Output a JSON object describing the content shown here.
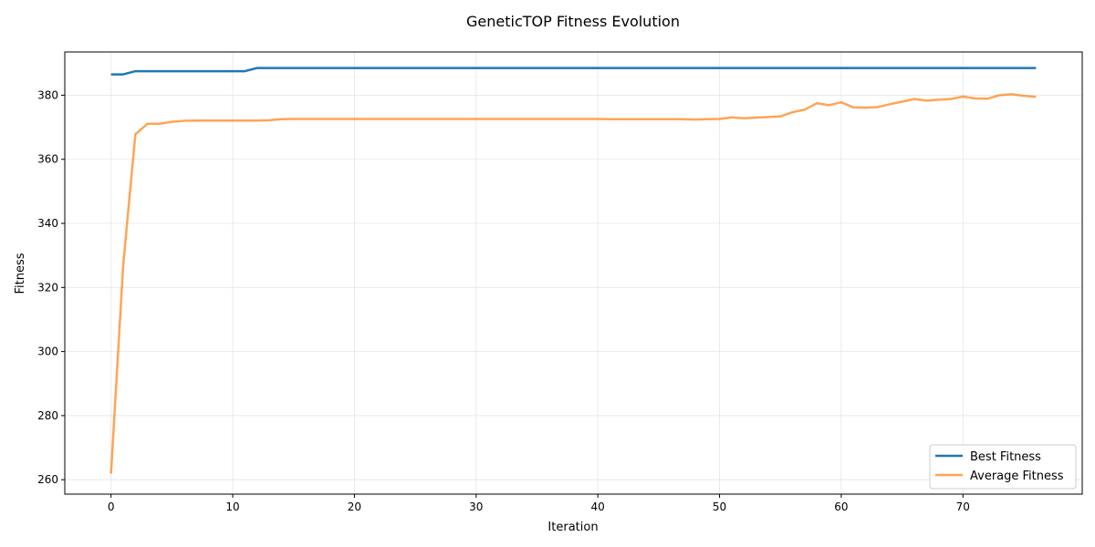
{
  "chart_data": {
    "type": "line",
    "title": "GeneticTOP Fitness Evolution",
    "xlabel": "Iteration",
    "ylabel": "Fitness",
    "xlim": [
      -3.8,
      79.8
    ],
    "ylim": [
      255.5,
      393.5
    ],
    "xticks": [
      0,
      10,
      20,
      30,
      40,
      50,
      60,
      70
    ],
    "yticks": [
      260,
      280,
      300,
      320,
      340,
      360,
      380
    ],
    "grid": true,
    "legend": "bottom-right",
    "series": [
      {
        "name": "Best Fitness",
        "color": "#1f77b4",
        "x": [
          0,
          1,
          2,
          11,
          12,
          76
        ],
        "y": [
          386.5,
          386.5,
          387.5,
          387.5,
          388.5,
          388.5
        ]
      },
      {
        "name": "Average Fitness",
        "color": "#ff7f0e",
        "x": [
          0,
          1,
          2,
          3,
          4,
          5,
          6,
          7,
          8,
          9,
          10,
          11,
          12,
          13,
          14,
          15,
          16,
          17,
          18,
          19,
          20,
          21,
          22,
          23,
          24,
          25,
          26,
          27,
          28,
          29,
          30,
          31,
          32,
          33,
          34,
          35,
          36,
          37,
          38,
          39,
          40,
          41,
          42,
          43,
          44,
          45,
          46,
          47,
          48,
          49,
          50,
          51,
          52,
          53,
          54,
          55,
          56,
          57,
          58,
          59,
          60,
          61,
          62,
          63,
          64,
          65,
          66,
          67,
          68,
          69,
          70,
          71,
          72,
          73,
          74,
          75,
          76
        ],
        "y": [
          261.9,
          327.0,
          367.8,
          371.1,
          371.1,
          371.7,
          372.0,
          372.1,
          372.1,
          372.1,
          372.1,
          372.1,
          372.1,
          372.2,
          372.5,
          372.6,
          372.6,
          372.6,
          372.6,
          372.6,
          372.6,
          372.6,
          372.6,
          372.6,
          372.6,
          372.6,
          372.6,
          372.6,
          372.6,
          372.6,
          372.6,
          372.6,
          372.6,
          372.6,
          372.6,
          372.6,
          372.6,
          372.6,
          372.6,
          372.6,
          372.6,
          372.5,
          372.5,
          372.5,
          372.5,
          372.5,
          372.5,
          372.5,
          372.4,
          372.5,
          372.6,
          373.1,
          372.8,
          373.0,
          373.2,
          373.4,
          374.7,
          375.5,
          377.5,
          376.9,
          377.8,
          376.2,
          376.1,
          376.3,
          377.2,
          378.0,
          378.8,
          378.3,
          378.6,
          378.8,
          379.6,
          379.0,
          378.9,
          380.0,
          380.3,
          379.8,
          379.5
        ]
      }
    ]
  }
}
